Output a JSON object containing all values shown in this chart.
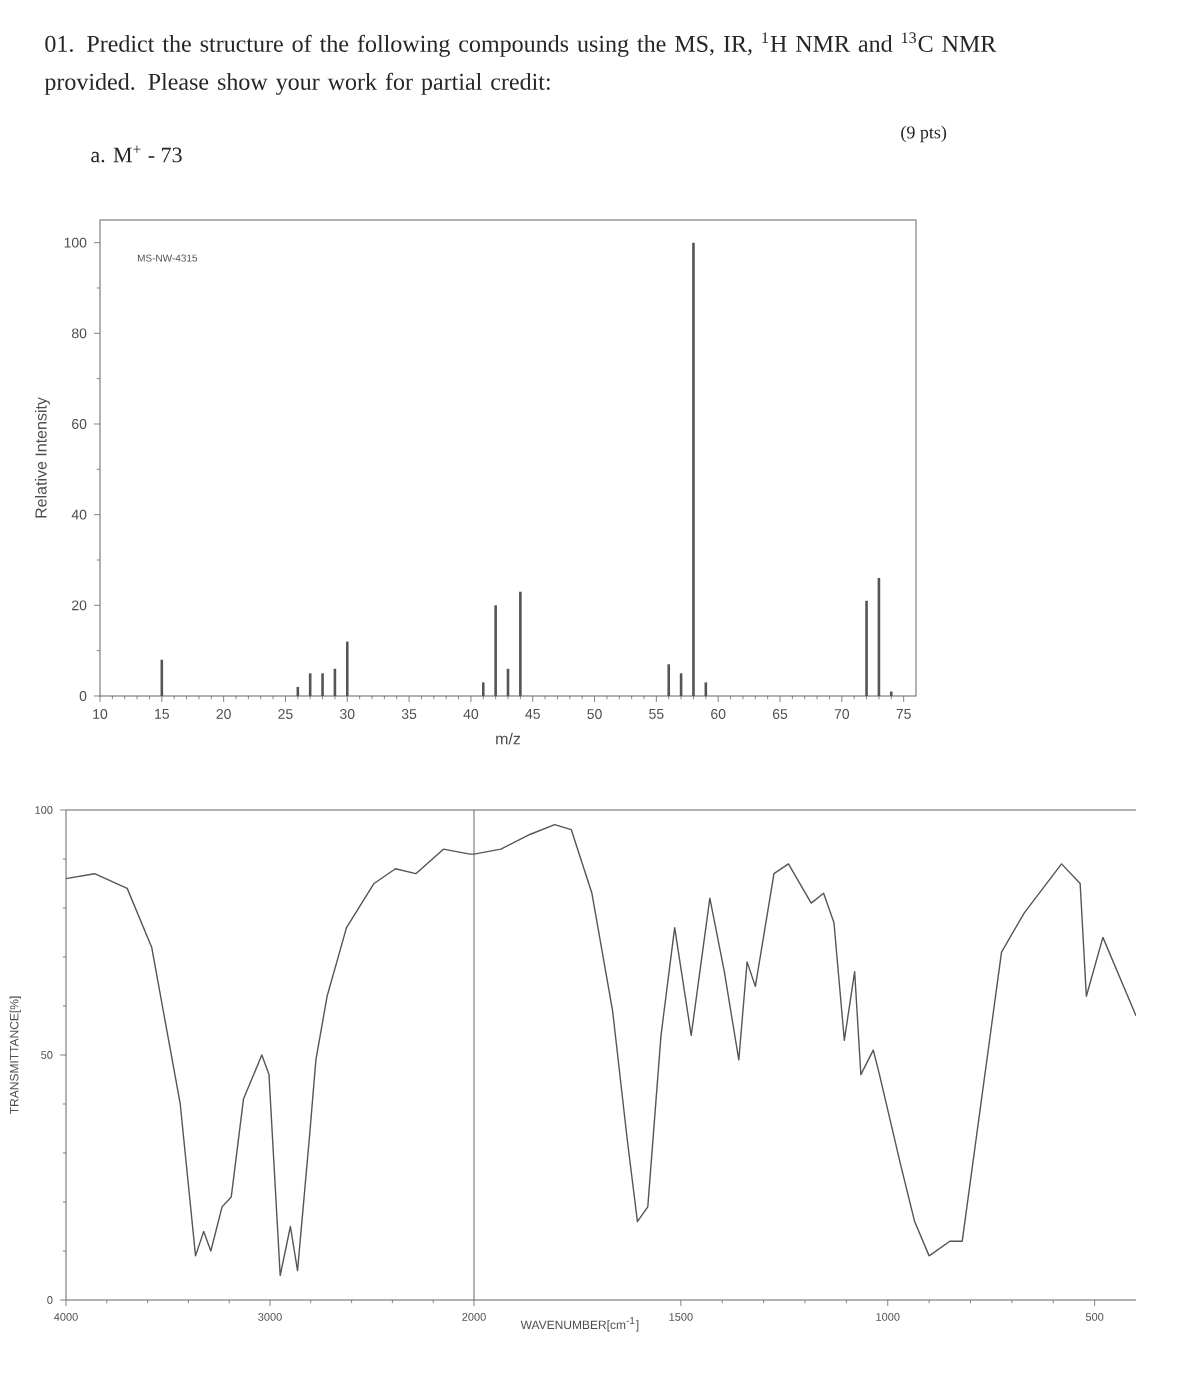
{
  "chart_data": [
    {
      "type": "bar",
      "title": "01. Predict the structure of the following compounds using the MS, IR, $^{1}$H NMR and $^{13}$C NMR provided. Please show your work for partial credit:",
      "subtitle": "a. M$^{+}$ - 73",
      "annotations": [
        "(9 pts)",
        "MS-NW-4315"
      ],
      "xlabel": "m/z",
      "ylabel": "Relative Intensity",
      "x": [
        15,
        26,
        27,
        28,
        29,
        30,
        41,
        42,
        43,
        44,
        56,
        57,
        58,
        59,
        72,
        73,
        74
      ],
      "values": [
        8,
        2,
        5,
        5,
        6,
        12,
        3,
        20,
        6,
        23,
        7,
        5,
        100,
        3,
        21,
        26,
        1
      ],
      "color": "#555555",
      "xlim": [
        10,
        76
      ],
      "ylim": [
        0,
        105
      ],
      "xticks": [
        10,
        15,
        20,
        25,
        30,
        35,
        40,
        45,
        50,
        55,
        60,
        65,
        70,
        75
      ],
      "yticks": [
        0,
        20,
        40,
        60,
        80,
        100
      ]
    },
    {
      "type": "line",
      "ylabel": "TRANSMITTANCE[%]",
      "x": [
        4000,
        3860,
        3700,
        3580,
        3440,
        3365,
        3325,
        3290,
        3235,
        3190,
        3130,
        3040,
        3005,
        2950,
        2900,
        2865,
        2805,
        2775,
        2720,
        2625,
        2490,
        2385,
        2285,
        2150,
        2020,
        2000
      ],
      "values": [
        86,
        87,
        84,
        72,
        40,
        9,
        14,
        10,
        19,
        21,
        41,
        50,
        46,
        5,
        15,
        6,
        34,
        49,
        62,
        76,
        85,
        88,
        87,
        92,
        91,
        91
      ],
      "color": "#555555",
      "xlim": [
        4000,
        2000
      ],
      "ylim": [
        0,
        100
      ],
      "xticks": [
        4000,
        3000,
        2000
      ],
      "yticks": [
        0,
        50,
        100
      ]
    },
    {
      "type": "line",
      "xlabel": "WAVENUMBER[cm$^{-1}$]",
      "x": [
        2000,
        1935,
        1865,
        1805,
        1765,
        1715,
        1665,
        1630,
        1605,
        1580,
        1548,
        1515,
        1475,
        1430,
        1395,
        1360,
        1340,
        1320,
        1275,
        1240,
        1185,
        1155,
        1130,
        1105,
        1080,
        1065,
        1035,
        1020,
        970,
        935,
        900,
        850,
        820,
        725,
        670,
        580,
        535,
        520,
        480,
        400
      ],
      "values": [
        91,
        92,
        95,
        97,
        96,
        83,
        59,
        33,
        16,
        19,
        54,
        76,
        54,
        82,
        67,
        49,
        69,
        64,
        87,
        89,
        81,
        83,
        77,
        53,
        67,
        46,
        51,
        46,
        28,
        16,
        9,
        12,
        12,
        71,
        79,
        89,
        85,
        62,
        74,
        58
      ],
      "color": "#555555",
      "xlim": [
        2000,
        400
      ],
      "ylim": [
        0,
        100
      ],
      "xticks": [
        1500,
        1000,
        500
      ],
      "tick_labels": "x"
    }
  ]
}
